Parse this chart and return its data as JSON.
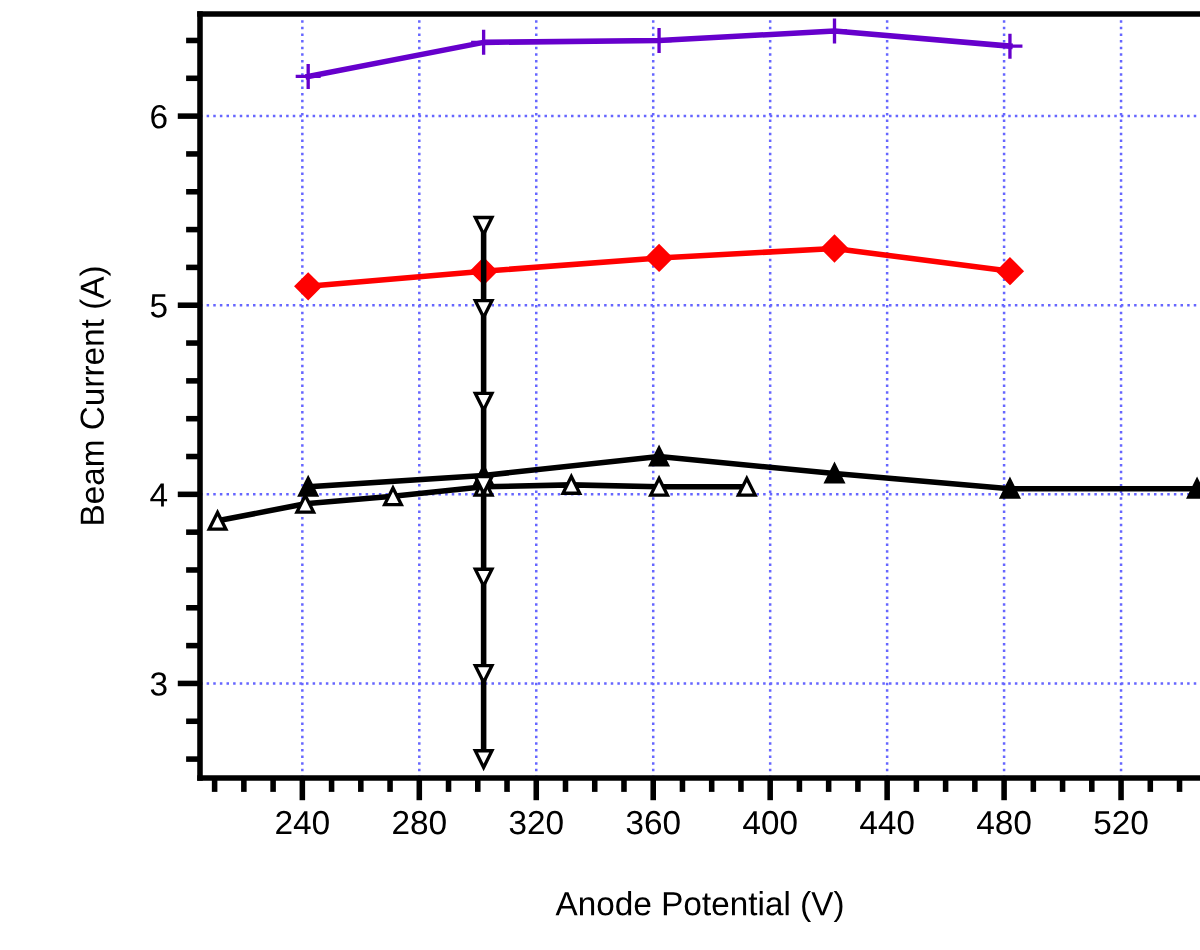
{
  "chart_data": {
    "type": "line",
    "xlabel": "Anode Potential (V)",
    "ylabel": "Beam Current (A)",
    "xlim": [
      205,
      547
    ],
    "ylim": [
      2.5,
      6.54
    ],
    "xticks": [
      240,
      280,
      320,
      360,
      400,
      440,
      480,
      520
    ],
    "yticks": [
      3,
      4,
      5,
      6
    ],
    "grid": true,
    "line_style": "solid",
    "series": [
      {
        "color": "#6600cc",
        "marker": "cross",
        "x": [
          242,
          302,
          362,
          422,
          482
        ],
        "values": [
          6.21,
          6.39,
          6.4,
          6.45,
          6.37
        ]
      },
      {
        "color": "#ff0000",
        "marker": "diamond",
        "x": [
          242,
          302,
          362,
          422,
          482
        ],
        "values": [
          5.1,
          5.18,
          5.25,
          5.3,
          5.18
        ]
      },
      {
        "color": "#000000",
        "marker": "triangle",
        "x": [
          242,
          302,
          362,
          422,
          482,
          546
        ],
        "values": [
          4.04,
          4.1,
          4.2,
          4.11,
          4.03,
          4.03
        ]
      },
      {
        "color": "#000000",
        "marker": "triangle_open",
        "x": [
          211,
          241,
          271,
          302,
          332,
          362,
          392
        ],
        "values": [
          3.86,
          3.95,
          3.99,
          4.04,
          4.05,
          4.04,
          4.04
        ]
      },
      {
        "color": "#000000",
        "marker": "triangle_down_open",
        "x": [
          302,
          302,
          302,
          302,
          302,
          302,
          302
        ],
        "values": [
          5.42,
          4.98,
          4.49,
          4.05,
          3.56,
          3.05,
          2.6
        ]
      }
    ]
  }
}
